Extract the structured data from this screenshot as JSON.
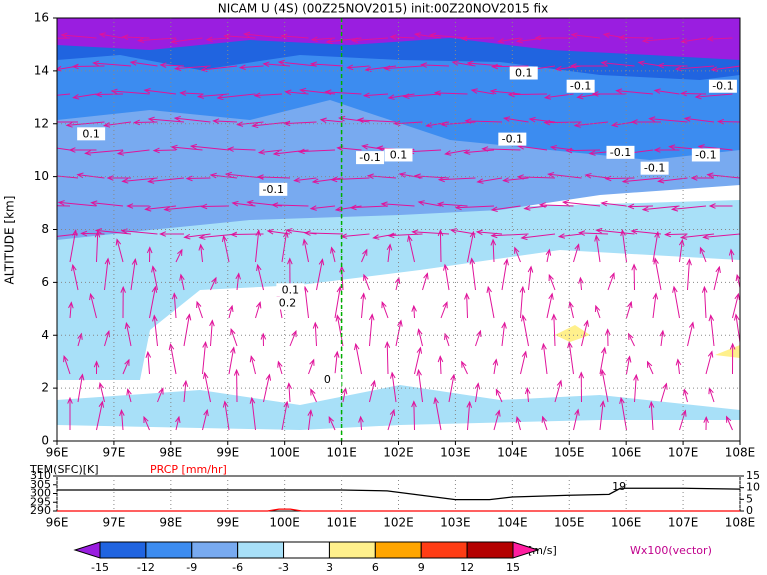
{
  "chart_data": [
    {
      "type": "cross-section",
      "title": "NICAM U (4S) (00Z25NOV2015) init:00Z20NOV2015 fix",
      "y_label": "ALTITUDE [km]",
      "xlim": [
        96,
        108
      ],
      "xticks": [
        {
          "value": 96,
          "label": "96E"
        },
        {
          "value": 97,
          "label": "97E"
        },
        {
          "value": 98,
          "label": "98E"
        },
        {
          "value": 99,
          "label": "99E"
        },
        {
          "value": 100,
          "label": "100E"
        },
        {
          "value": 101,
          "label": "101E"
        },
        {
          "value": 102,
          "label": "102E"
        },
        {
          "value": 103,
          "label": "103E"
        },
        {
          "value": 104,
          "label": "104E"
        },
        {
          "value": 105,
          "label": "105E"
        },
        {
          "value": 106,
          "label": "106E"
        },
        {
          "value": 107,
          "label": "107E"
        },
        {
          "value": 108,
          "label": "108E"
        }
      ],
      "ylim": [
        0,
        16
      ],
      "yticks": [
        0,
        2,
        4,
        6,
        8,
        10,
        12,
        14,
        16
      ],
      "grid": true,
      "vline": 101,
      "annotations": [
        {
          "text": "0.1",
          "x": 96.6,
          "y": 11.6
        },
        {
          "text": "-0.1",
          "x": 99.8,
          "y": 9.5
        },
        {
          "text": "-0.1",
          "x": 101.5,
          "y": 10.7
        },
        {
          "text": "0.1",
          "x": 102.0,
          "y": 10.8
        },
        {
          "text": "0.1",
          "x": 104.2,
          "y": 13.9
        },
        {
          "text": "-0.1",
          "x": 105.2,
          "y": 13.4
        },
        {
          "text": "-0.1",
          "x": 107.7,
          "y": 13.4
        },
        {
          "text": "-0.1",
          "x": 104.0,
          "y": 11.4
        },
        {
          "text": "-0.1",
          "x": 105.9,
          "y": 10.9
        },
        {
          "text": "-0.1",
          "x": 106.5,
          "y": 10.3
        },
        {
          "text": "-0.1",
          "x": 107.4,
          "y": 10.8
        },
        {
          "text": "0.1",
          "x": 100.1,
          "y": 5.7
        },
        {
          "text": "0.2",
          "x": 100.05,
          "y": 5.2
        },
        {
          "text": "0",
          "x": 100.75,
          "y": 2.3
        }
      ]
    },
    {
      "type": "line",
      "xlim": [
        96,
        108
      ],
      "xticks": [
        {
          "value": 96,
          "label": "96E"
        },
        {
          "value": 97,
          "label": "97E"
        },
        {
          "value": 98,
          "label": "98E"
        },
        {
          "value": 99,
          "label": "99E"
        },
        {
          "value": 100,
          "label": "100E"
        },
        {
          "value": 101,
          "label": "101E"
        },
        {
          "value": 102,
          "label": "102E"
        },
        {
          "value": 103,
          "label": "103E"
        },
        {
          "value": 104,
          "label": "104E"
        },
        {
          "value": 105,
          "label": "105E"
        },
        {
          "value": 106,
          "label": "106E"
        },
        {
          "value": 107,
          "label": "107E"
        },
        {
          "value": 108,
          "label": "108E"
        }
      ],
      "ylim": [
        290,
        310
      ],
      "yticks": [
        290,
        295,
        300,
        305,
        310
      ],
      "y2lim": [
        0,
        15
      ],
      "y2ticks": [
        0,
        5,
        10,
        15
      ],
      "series": [
        {
          "name": "TEM(SFC)[K]",
          "color": "#000000",
          "x": [
            96,
            97,
            98,
            99,
            100,
            101,
            101.8,
            102.4,
            103,
            103.6,
            104,
            105,
            105.7,
            105.9,
            107,
            108
          ],
          "values": [
            302,
            302,
            302,
            302,
            302,
            302,
            301.5,
            299,
            296.5,
            296.5,
            298,
            299,
            299.5,
            303,
            303,
            302.5
          ]
        },
        {
          "name": "PRCP [mm/hr]",
          "color": "#ff0000",
          "axis": "y2",
          "x": [
            96,
            99.7,
            99.9,
            100.1,
            100.3,
            108
          ],
          "values": [
            0,
            0,
            0.8,
            0.8,
            0,
            0
          ]
        }
      ],
      "annotations": [
        {
          "text": "19",
          "x": 106,
          "y": 303.7
        }
      ]
    },
    {
      "type": "colorbar",
      "unit": "[m/s]",
      "vector_label": "Wx100(vector)",
      "levels": [
        -15,
        -12,
        -9,
        -6,
        -3,
        3,
        6,
        9,
        12,
        15
      ],
      "colors": [
        "#9a1ee0",
        "#2064e0",
        "#3c8cf0",
        "#78aaf0",
        "#a8e0f8",
        "#ffffff",
        "#fff08c",
        "#ffa500",
        "#ff3c14",
        "#b40000",
        "#ff1ea0"
      ]
    }
  ]
}
